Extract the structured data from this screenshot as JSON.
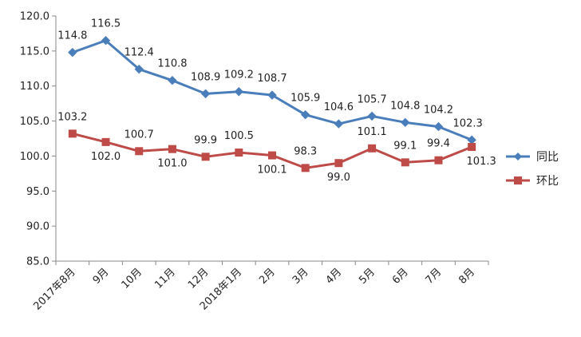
{
  "chart_data": {
    "type": "line",
    "categories": [
      "2017年8月",
      "9月",
      "10月",
      "11月",
      "12月",
      "2018年1月",
      "2月",
      "3月",
      "4月",
      "5月",
      "6月",
      "7月",
      "8月"
    ],
    "series": [
      {
        "name": "同比",
        "color": "#4a7ebb",
        "marker": "diamond",
        "values": [
          114.8,
          116.5,
          112.4,
          110.8,
          108.9,
          109.2,
          108.7,
          105.9,
          104.6,
          105.7,
          104.8,
          104.2,
          102.3
        ],
        "labels": [
          "114.8",
          "116.5",
          "112.4",
          "110.8",
          "108.9",
          "109.2",
          "108.7",
          "105.9",
          "104.6",
          "105.7",
          "104.8",
          "104.2",
          "102.3"
        ]
      },
      {
        "name": "环比",
        "color": "#be4b48",
        "marker": "square",
        "values": [
          103.2,
          102.0,
          100.7,
          101.0,
          99.9,
          100.5,
          100.1,
          98.3,
          99.0,
          101.1,
          99.1,
          99.4,
          101.3
        ],
        "labels": [
          "103.2",
          "102.0",
          "100.7",
          "101.0",
          "99.9",
          "100.5",
          "100.1",
          "98.3",
          "99.0",
          "101.1",
          "99.1",
          "99.4",
          "101.3"
        ]
      }
    ],
    "title": "",
    "xlabel": "",
    "ylabel": "",
    "ylim": [
      85.0,
      120.0
    ],
    "yticks": [
      "85.0",
      "90.0",
      "95.0",
      "100.0",
      "105.0",
      "110.0",
      "115.0",
      "120.0"
    ],
    "grid": false,
    "legend": "right"
  }
}
